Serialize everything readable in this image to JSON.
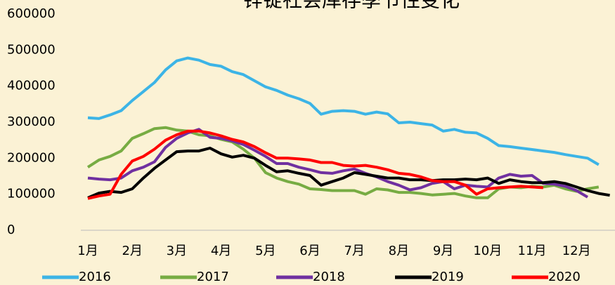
{
  "chart_data": {
    "type": "line",
    "title": "锌锭社会库存季节性变化",
    "categories": [
      "1月",
      null,
      null,
      null,
      "2月",
      null,
      null,
      null,
      "3月",
      null,
      null,
      null,
      "4月",
      null,
      null,
      null,
      "5月",
      null,
      null,
      null,
      "6月",
      null,
      null,
      null,
      "7月",
      null,
      null,
      null,
      "8月",
      null,
      null,
      null,
      "9月",
      null,
      null,
      null,
      "10月",
      null,
      null,
      null,
      "11月",
      null,
      null,
      null,
      "12月",
      null,
      null,
      null
    ],
    "ylim": [
      0,
      600000
    ],
    "yticks": [
      0,
      100000,
      200000,
      300000,
      400000,
      500000,
      600000
    ],
    "grid": false,
    "legend": "bottom",
    "series": [
      {
        "name": "2016",
        "color": "#3cb4e6",
        "values": [
          312000,
          310000,
          320000,
          332000,
          360000,
          385000,
          410000,
          445000,
          470000,
          478000,
          472000,
          460000,
          455000,
          440000,
          432000,
          415000,
          398000,
          388000,
          375000,
          365000,
          352000,
          322000,
          330000,
          332000,
          330000,
          322000,
          328000,
          323000,
          298000,
          300000,
          296000,
          292000,
          275000,
          280000,
          272000,
          270000,
          255000,
          235000,
          232000,
          228000,
          224000,
          220000,
          216000,
          210000,
          205000,
          200000,
          182000,
          null
        ]
      },
      {
        "name": "2017",
        "color": "#77ac43",
        "values": [
          175000,
          195000,
          205000,
          220000,
          255000,
          268000,
          282000,
          285000,
          278000,
          275000,
          265000,
          262000,
          252000,
          245000,
          225000,
          200000,
          160000,
          145000,
          135000,
          128000,
          115000,
          113000,
          110000,
          110000,
          110000,
          100000,
          115000,
          112000,
          105000,
          105000,
          102000,
          98000,
          100000,
          102000,
          95000,
          90000,
          90000,
          115000,
          120000,
          118000,
          122000,
          120000,
          125000,
          115000,
          108000,
          115000,
          120000,
          null
        ]
      },
      {
        "name": "2018",
        "color": "#7030a0",
        "values": [
          145000,
          142000,
          140000,
          145000,
          165000,
          175000,
          190000,
          230000,
          255000,
          270000,
          280000,
          258000,
          255000,
          248000,
          238000,
          222000,
          205000,
          185000,
          185000,
          175000,
          168000,
          160000,
          158000,
          165000,
          170000,
          158000,
          148000,
          135000,
          125000,
          112000,
          118000,
          130000,
          135000,
          115000,
          125000,
          122000,
          120000,
          145000,
          155000,
          150000,
          152000,
          130000,
          128000,
          122000,
          110000,
          92000,
          null,
          null
        ]
      },
      {
        "name": "2019",
        "color": "#000000",
        "values": [
          90000,
          103000,
          108000,
          105000,
          115000,
          145000,
          172000,
          195000,
          218000,
          220000,
          220000,
          228000,
          212000,
          203000,
          208000,
          200000,
          180000,
          162000,
          165000,
          158000,
          152000,
          125000,
          135000,
          145000,
          160000,
          155000,
          150000,
          145000,
          145000,
          140000,
          140000,
          138000,
          140000,
          140000,
          142000,
          140000,
          145000,
          130000,
          140000,
          135000,
          132000,
          132000,
          135000,
          130000,
          120000,
          110000,
          102000,
          97000
        ]
      },
      {
        "name": "2020",
        "color": "#ff0000",
        "values": [
          88000,
          95000,
          100000,
          155000,
          192000,
          205000,
          225000,
          250000,
          265000,
          275000,
          275000,
          270000,
          262000,
          252000,
          245000,
          232000,
          215000,
          200000,
          200000,
          198000,
          195000,
          188000,
          188000,
          180000,
          178000,
          180000,
          175000,
          168000,
          158000,
          155000,
          148000,
          138000,
          135000,
          135000,
          125000,
          100000,
          115000,
          118000,
          120000,
          122000,
          120000,
          118000,
          null,
          null,
          null,
          null,
          null,
          null
        ]
      }
    ]
  }
}
